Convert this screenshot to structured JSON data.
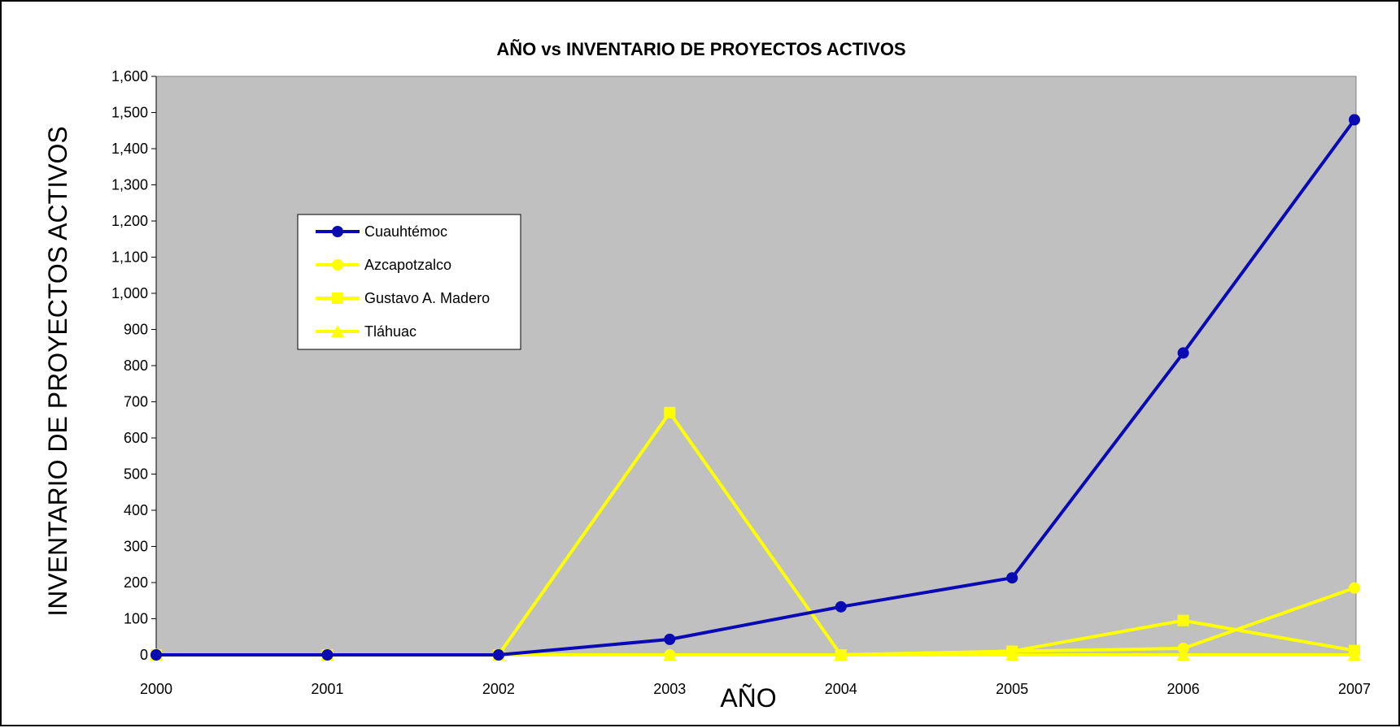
{
  "chart_data": {
    "type": "line",
    "title": "AÑO vs INVENTARIO DE PROYECTOS ACTIVOS",
    "xlabel": "AÑO",
    "ylabel": "INVENTARIO DE PROYECTOS ACTIVOS",
    "x": [
      "2000",
      "2001",
      "2002",
      "2003",
      "2004",
      "2005",
      "2006",
      "2007"
    ],
    "ylim": [
      0,
      1600
    ],
    "yticks": [
      "0",
      "100",
      "200",
      "300",
      "400",
      "500",
      "600",
      "700",
      "800",
      "900",
      "1,000",
      "1,100",
      "1,200",
      "1,300",
      "1,400",
      "1,500",
      "1,600"
    ],
    "ytick_values": [
      0,
      100,
      200,
      300,
      400,
      500,
      600,
      700,
      800,
      900,
      1000,
      1100,
      1200,
      1300,
      1400,
      1500,
      1600
    ],
    "plot_background": "#c0c0c0",
    "grid": false,
    "legend_position": "upper-left",
    "series": [
      {
        "name": "Cuauhtémoc",
        "color": "#0a0ab4",
        "marker": "circle",
        "values": [
          0,
          0,
          0,
          43,
          133,
          213,
          835,
          1480
        ]
      },
      {
        "name": "Azcapotzalco",
        "color": "#ffff00",
        "marker": "circle",
        "values": [
          0,
          0,
          0,
          0,
          0,
          10,
          18,
          185
        ]
      },
      {
        "name": "Gustavo A. Madero",
        "color": "#ffff00",
        "marker": "square",
        "values": [
          0,
          0,
          0,
          670,
          0,
          10,
          95,
          12
        ]
      },
      {
        "name": "Tláhuac",
        "color": "#ffff00",
        "marker": "triangle",
        "values": [
          0,
          0,
          0,
          0,
          0,
          0,
          0,
          0
        ]
      }
    ]
  }
}
